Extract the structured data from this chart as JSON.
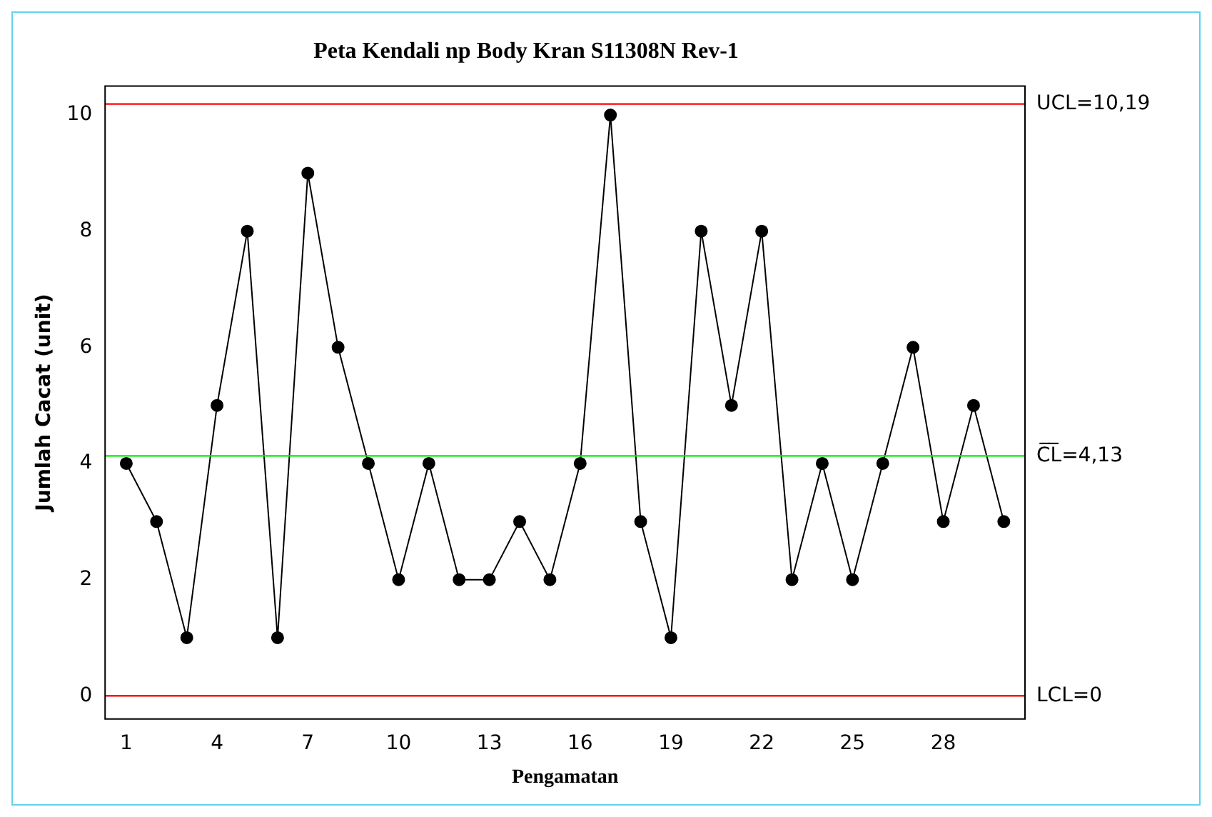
{
  "chart_data": {
    "type": "line",
    "title": "Peta Kendali np Body Kran S11308N Rev-1",
    "xlabel": "Pengamatan",
    "ylabel": "Jumlah Cacat (unit)",
    "x": [
      1,
      2,
      3,
      4,
      5,
      6,
      7,
      8,
      9,
      10,
      11,
      12,
      13,
      14,
      15,
      16,
      17,
      18,
      19,
      20,
      21,
      22,
      23,
      24,
      25,
      26,
      27,
      28,
      29,
      30
    ],
    "series": [
      {
        "color": "#000000",
        "values": [
          4,
          3,
          1,
          5,
          8,
          1,
          9,
          6,
          4,
          2,
          4,
          2,
          2,
          3,
          2,
          4,
          10,
          3,
          1,
          8,
          5,
          8,
          2,
          4,
          2,
          4,
          6,
          3,
          5,
          3
        ]
      }
    ],
    "xlim": [
      0.3,
      30.7
    ],
    "xticks": [
      1,
      4,
      7,
      10,
      13,
      16,
      19,
      22,
      25,
      28
    ],
    "ylim": [
      -0.4,
      10.5
    ],
    "yticks": [
      0,
      2,
      4,
      6,
      8,
      10
    ],
    "ref_lines": [
      {
        "axis": "y",
        "value": 10.19,
        "label": "UCL=10,19",
        "color": "#ff0000"
      },
      {
        "axis": "y",
        "value": 4.13,
        "label": "C̅L̅=4,13",
        "color": "#00ee00"
      },
      {
        "axis": "y",
        "value": 0,
        "label": "LCL=0",
        "color": "#ff0000"
      }
    ],
    "grid": false,
    "legend": false,
    "marker": "circle",
    "line_style": "solid"
  }
}
